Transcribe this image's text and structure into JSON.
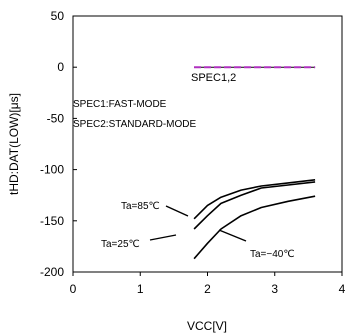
{
  "chart_data": {
    "type": "line",
    "xlabel": "VCC[V]",
    "ylabel": "tHD:DAT(LOW)[μs]",
    "xlim": [
      0,
      4
    ],
    "ylim": [
      -200,
      50
    ],
    "xticks": [
      0,
      1,
      2,
      3,
      4
    ],
    "yticks": [
      50,
      0,
      -50,
      -100,
      -150,
      -200
    ],
    "grid": false,
    "series": [
      {
        "name": "Ta=85°C",
        "x": [
          1.8,
          2.0,
          2.2,
          2.5,
          2.8,
          3.2,
          3.6
        ],
        "y": [
          -148,
          -135,
          -127,
          -120,
          -116,
          -113,
          -110
        ]
      },
      {
        "name": "Ta=25°C",
        "x": [
          1.8,
          2.0,
          2.2,
          2.5,
          2.8,
          3.2,
          3.6
        ],
        "y": [
          -158,
          -145,
          -133,
          -125,
          -118,
          -115,
          -112
        ]
      },
      {
        "name": "Ta=-40°C",
        "x": [
          1.8,
          2.0,
          2.2,
          2.5,
          2.8,
          3.2,
          3.6
        ],
        "y": [
          -187,
          -172,
          -158,
          -145,
          -137,
          -131,
          -126
        ]
      }
    ],
    "spec_line": {
      "label": "SPEC1,2",
      "x": [
        1.8,
        3.6
      ],
      "y": [
        0,
        0
      ],
      "color": "#b030c0"
    },
    "annotations": {
      "spec1": "SPEC1:FAST-MODE",
      "spec2": "SPEC2:STANDARD-MODE",
      "ta85": "Ta=85℃",
      "ta25": "Ta=25℃",
      "tam40": "Ta=−40℃"
    }
  }
}
